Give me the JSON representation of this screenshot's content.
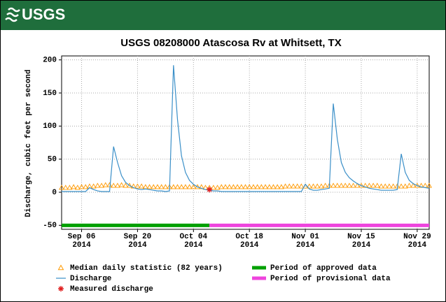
{
  "header": {
    "logo": "USGS"
  },
  "chart_data": {
    "type": "line",
    "title": "USGS 08208000 Atascosa Rv at Whitsett, TX",
    "ylabel": "Discharge, cubic feet per second",
    "x": [
      "2014-09-01",
      "2014-09-02",
      "2014-09-03",
      "2014-09-04",
      "2014-09-05",
      "2014-09-06",
      "2014-09-07",
      "2014-09-08",
      "2014-09-09",
      "2014-09-10",
      "2014-09-11",
      "2014-09-12",
      "2014-09-13",
      "2014-09-14",
      "2014-09-15",
      "2014-09-16",
      "2014-09-17",
      "2014-09-18",
      "2014-09-19",
      "2014-09-20",
      "2014-09-21",
      "2014-09-22",
      "2014-09-23",
      "2014-09-24",
      "2014-09-25",
      "2014-09-26",
      "2014-09-27",
      "2014-09-28",
      "2014-09-29",
      "2014-09-30",
      "2014-10-01",
      "2014-10-02",
      "2014-10-03",
      "2014-10-04",
      "2014-10-05",
      "2014-10-06",
      "2014-10-07",
      "2014-10-08",
      "2014-10-09",
      "2014-10-10",
      "2014-10-11",
      "2014-10-12",
      "2014-10-13",
      "2014-10-14",
      "2014-10-15",
      "2014-10-16",
      "2014-10-17",
      "2014-10-18",
      "2014-10-19",
      "2014-10-20",
      "2014-10-21",
      "2014-10-22",
      "2014-10-23",
      "2014-10-24",
      "2014-10-25",
      "2014-10-26",
      "2014-10-27",
      "2014-10-28",
      "2014-10-29",
      "2014-10-30",
      "2014-10-31",
      "2014-11-01",
      "2014-11-02",
      "2014-11-03",
      "2014-11-04",
      "2014-11-05",
      "2014-11-06",
      "2014-11-07",
      "2014-11-08",
      "2014-11-09",
      "2014-11-10",
      "2014-11-11",
      "2014-11-12",
      "2014-11-13",
      "2014-11-14",
      "2014-11-15",
      "2014-11-16",
      "2014-11-17",
      "2014-11-18",
      "2014-11-19",
      "2014-11-20",
      "2014-11-21",
      "2014-11-22",
      "2014-11-23",
      "2014-11-24",
      "2014-11-25",
      "2014-11-26",
      "2014-11-27",
      "2014-11-28",
      "2014-11-29",
      "2014-11-30",
      "2014-12-01",
      "2014-12-02"
    ],
    "series": [
      {
        "name": "Median daily statistic (82 years)",
        "color": "#ff9900",
        "marker": "triangle",
        "values": [
          7,
          7,
          7,
          8,
          7,
          8,
          8,
          9,
          9,
          10,
          10,
          11,
          11,
          10,
          10,
          11,
          10,
          10,
          9,
          9,
          9,
          8,
          8,
          8,
          8,
          8,
          8,
          8,
          8,
          8,
          8,
          8,
          8,
          8,
          8,
          8,
          7,
          7,
          7,
          7,
          8,
          8,
          8,
          8,
          8,
          8,
          8,
          8,
          8,
          8,
          8,
          8,
          8,
          8,
          8,
          8,
          9,
          9,
          9,
          9,
          9,
          9,
          9,
          9,
          9,
          9,
          10,
          10,
          10,
          10,
          10,
          10,
          10,
          10,
          10,
          10,
          10,
          10,
          10,
          10,
          9,
          9,
          9,
          9,
          9,
          9,
          9,
          10,
          10,
          10,
          10,
          10,
          10
        ]
      },
      {
        "name": "Discharge",
        "color": "#3a8fc8",
        "marker": "line",
        "values": [
          1,
          1,
          1,
          1,
          1,
          1,
          1,
          7,
          4,
          2,
          1,
          1,
          1,
          69,
          45,
          25,
          15,
          10,
          7,
          5,
          4,
          5,
          4,
          3,
          2,
          2,
          1,
          2,
          192,
          110,
          55,
          30,
          18,
          12,
          8,
          6,
          4,
          3,
          2,
          2,
          1,
          1,
          1,
          1,
          1,
          1,
          1,
          1,
          1,
          1,
          1,
          1,
          1,
          1,
          1,
          1,
          1,
          1,
          1,
          1,
          1,
          12,
          5,
          3,
          3,
          4,
          5,
          6,
          134,
          80,
          45,
          30,
          22,
          17,
          13,
          10,
          8,
          6,
          5,
          4,
          3,
          3,
          3,
          3,
          4,
          58,
          30,
          18,
          13,
          10,
          8,
          7,
          6
        ]
      }
    ],
    "measured": {
      "name": "Measured discharge",
      "color": "#e02020",
      "x": [
        "2014-10-08"
      ],
      "values": [
        4
      ]
    },
    "periods": [
      {
        "name": "Period of approved data",
        "color": "#00a000",
        "start": "2014-09-01",
        "end": "2014-10-08"
      },
      {
        "name": "Period of provisional data",
        "color": "#ee44dd",
        "start": "2014-10-08",
        "end": "2014-12-02"
      }
    ],
    "period_level": -50,
    "xlim": [
      "2014-09-01",
      "2014-12-02"
    ],
    "xticks": [
      {
        "value": "2014-09-06",
        "label": "Sep 06\n2014"
      },
      {
        "value": "2014-09-20",
        "label": "Sep 20\n2014"
      },
      {
        "value": "2014-10-04",
        "label": "Oct 04\n2014"
      },
      {
        "value": "2014-10-18",
        "label": "Oct 18\n2014"
      },
      {
        "value": "2014-11-01",
        "label": "Nov 01\n2014"
      },
      {
        "value": "2014-11-15",
        "label": "Nov 15\n2014"
      },
      {
        "value": "2014-11-29",
        "label": "Nov 29\n2014"
      }
    ],
    "ylim": [
      -56,
      206
    ],
    "yticks": [
      -50,
      0,
      50,
      100,
      150,
      200
    ],
    "grid": true
  }
}
